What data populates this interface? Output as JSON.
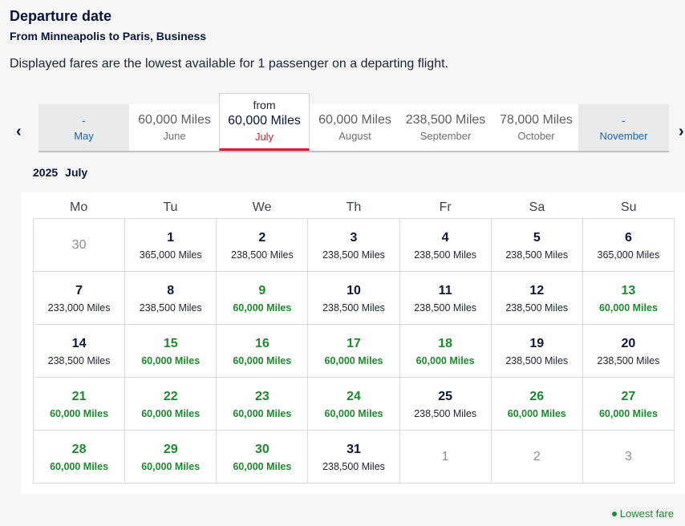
{
  "header": {
    "title": "Departure date",
    "subtitle": "From Minneapolis to Paris, Business",
    "note": "Displayed fares are the lowest available for 1 passenger on a departing flight."
  },
  "nav": {
    "prev_icon": "chevron-left-icon",
    "next_icon": "chevron-right-icon",
    "prev_glyph": "‹",
    "next_glyph": "›"
  },
  "months": [
    {
      "fare": "-",
      "name": "May",
      "state": "disabled"
    },
    {
      "fare": "60,000 Miles",
      "name": "June",
      "state": "normal"
    },
    {
      "prefix": "from",
      "fare": "60,000 Miles",
      "name": "July",
      "state": "selected"
    },
    {
      "fare": "60,000 Miles",
      "name": "August",
      "state": "normal"
    },
    {
      "fare": "238,500 Miles",
      "name": "September",
      "state": "normal"
    },
    {
      "fare": "78,000 Miles",
      "name": "October",
      "state": "normal"
    },
    {
      "fare": "-",
      "name": "November",
      "state": "disabled"
    }
  ],
  "calendar": {
    "year": "2025",
    "month": "July",
    "weekdays": [
      "Mo",
      "Tu",
      "We",
      "Th",
      "Fr",
      "Sa",
      "Su"
    ],
    "cells": [
      {
        "day": "30",
        "price": "",
        "type": "out"
      },
      {
        "day": "1",
        "price": "365,000 Miles",
        "type": "normal"
      },
      {
        "day": "2",
        "price": "238,500 Miles",
        "type": "normal"
      },
      {
        "day": "3",
        "price": "238,500 Miles",
        "type": "normal"
      },
      {
        "day": "4",
        "price": "238,500 Miles",
        "type": "normal"
      },
      {
        "day": "5",
        "price": "238,500 Miles",
        "type": "normal"
      },
      {
        "day": "6",
        "price": "365,000 Miles",
        "type": "normal"
      },
      {
        "day": "7",
        "price": "233,000 Miles",
        "type": "normal"
      },
      {
        "day": "8",
        "price": "238,500 Miles",
        "type": "normal"
      },
      {
        "day": "9",
        "price": "60,000 Miles",
        "type": "low"
      },
      {
        "day": "10",
        "price": "238,500 Miles",
        "type": "normal"
      },
      {
        "day": "11",
        "price": "238,500 Miles",
        "type": "normal"
      },
      {
        "day": "12",
        "price": "238,500 Miles",
        "type": "normal"
      },
      {
        "day": "13",
        "price": "60,000 Miles",
        "type": "low"
      },
      {
        "day": "14",
        "price": "238,500 Miles",
        "type": "normal"
      },
      {
        "day": "15",
        "price": "60,000 Miles",
        "type": "low"
      },
      {
        "day": "16",
        "price": "60,000 Miles",
        "type": "low"
      },
      {
        "day": "17",
        "price": "60,000 Miles",
        "type": "low"
      },
      {
        "day": "18",
        "price": "60,000 Miles",
        "type": "low"
      },
      {
        "day": "19",
        "price": "238,500 Miles",
        "type": "normal"
      },
      {
        "day": "20",
        "price": "238,500 Miles",
        "type": "normal"
      },
      {
        "day": "21",
        "price": "60,000 Miles",
        "type": "low"
      },
      {
        "day": "22",
        "price": "60,000 Miles",
        "type": "low"
      },
      {
        "day": "23",
        "price": "60,000 Miles",
        "type": "low"
      },
      {
        "day": "24",
        "price": "60,000 Miles",
        "type": "low"
      },
      {
        "day": "25",
        "price": "238,500 Miles",
        "type": "normal"
      },
      {
        "day": "26",
        "price": "60,000 Miles",
        "type": "low"
      },
      {
        "day": "27",
        "price": "60,000 Miles",
        "type": "low"
      },
      {
        "day": "28",
        "price": "60,000 Miles",
        "type": "low"
      },
      {
        "day": "29",
        "price": "60,000 Miles",
        "type": "low"
      },
      {
        "day": "30",
        "price": "60,000 Miles",
        "type": "low"
      },
      {
        "day": "31",
        "price": "238,500 Miles",
        "type": "normal"
      },
      {
        "day": "1",
        "price": "",
        "type": "out"
      },
      {
        "day": "2",
        "price": "",
        "type": "out"
      },
      {
        "day": "3",
        "price": "",
        "type": "out"
      }
    ]
  },
  "legend": {
    "label": "Lowest fare"
  },
  "colors": {
    "lowest_fare": "#1e8a2e",
    "selected_accent": "#d01f2e",
    "disabled_link": "#1a5fb4",
    "heading": "#0b1638"
  }
}
